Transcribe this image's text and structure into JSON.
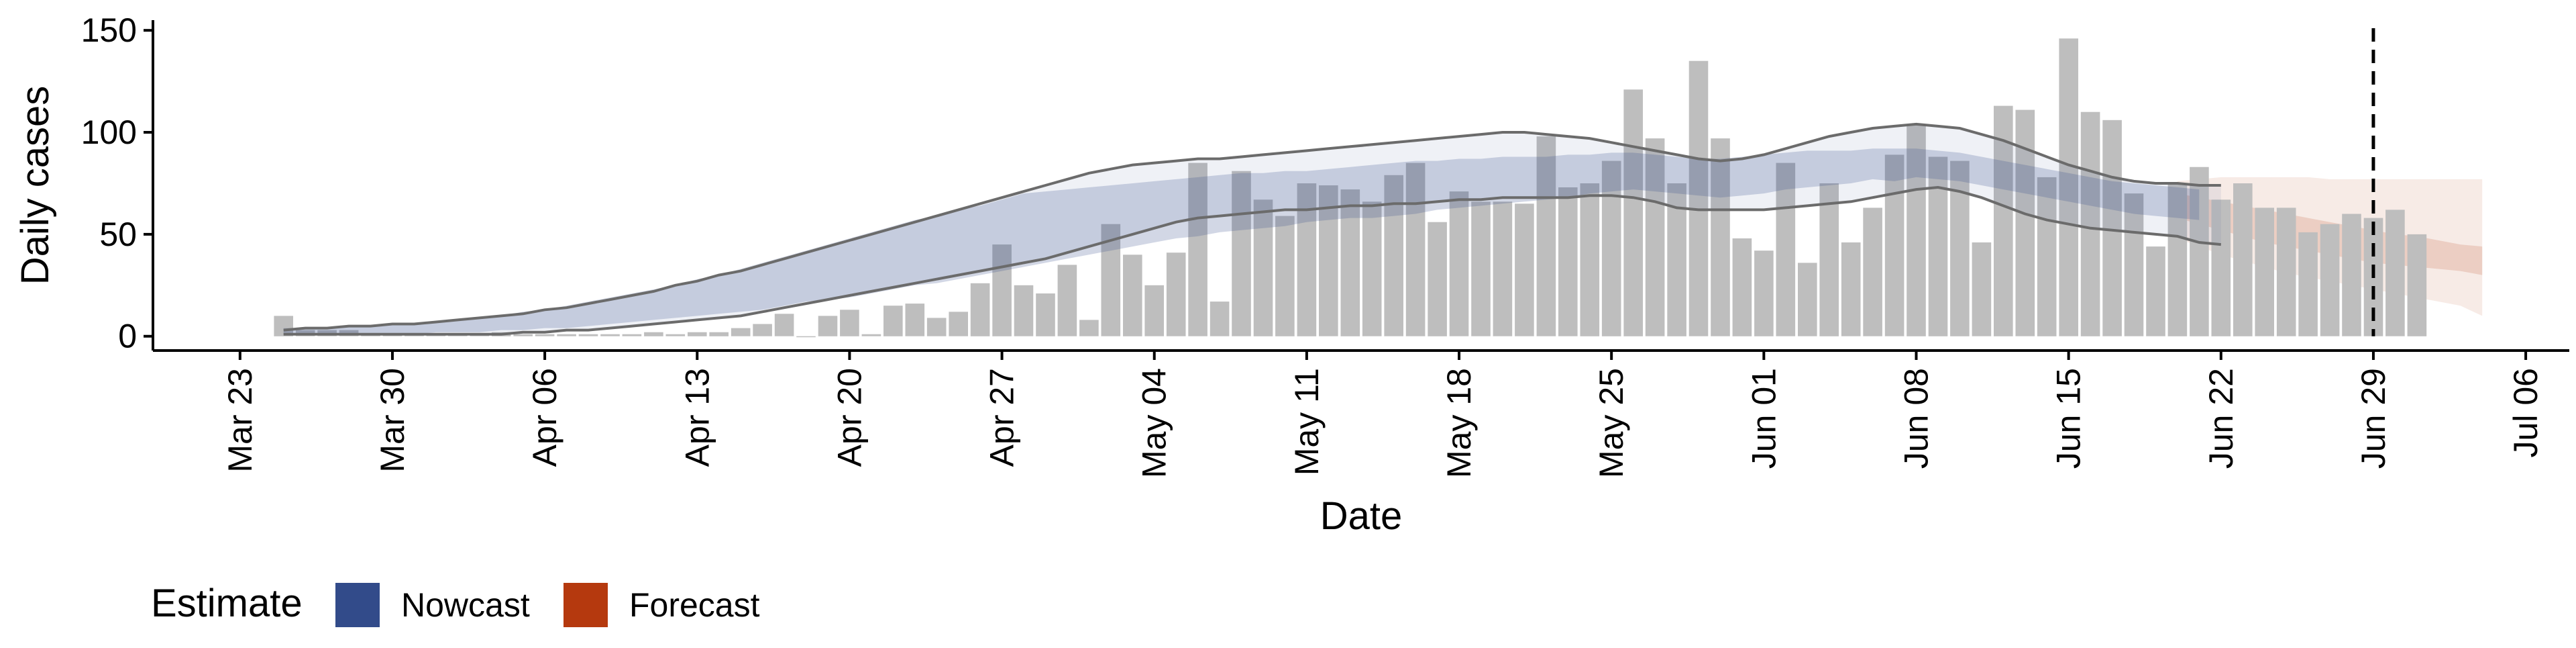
{
  "chart_data": {
    "type": "bar",
    "title": "",
    "xlabel": "Date",
    "ylabel": "Daily cases",
    "xlim": [
      "2020-03-19",
      "2020-07-08"
    ],
    "ylim": [
      -7,
      155
    ],
    "y_ticks": [
      0,
      50,
      100,
      150
    ],
    "x_ticks": [
      {
        "date": "2020-03-23",
        "label": "Mar 23"
      },
      {
        "date": "2020-03-30",
        "label": "Mar 30"
      },
      {
        "date": "2020-04-06",
        "label": "Apr 06"
      },
      {
        "date": "2020-04-13",
        "label": "Apr 13"
      },
      {
        "date": "2020-04-20",
        "label": "Apr 20"
      },
      {
        "date": "2020-04-27",
        "label": "Apr 27"
      },
      {
        "date": "2020-05-04",
        "label": "May 04"
      },
      {
        "date": "2020-05-11",
        "label": "May 11"
      },
      {
        "date": "2020-05-18",
        "label": "May 18"
      },
      {
        "date": "2020-05-25",
        "label": "May 25"
      },
      {
        "date": "2020-06-01",
        "label": "Jun 01"
      },
      {
        "date": "2020-06-08",
        "label": "Jun 08"
      },
      {
        "date": "2020-06-15",
        "label": "Jun 15"
      },
      {
        "date": "2020-06-22",
        "label": "Jun 22"
      },
      {
        "date": "2020-06-29",
        "label": "Jun 29"
      },
      {
        "date": "2020-07-06",
        "label": "Jul 06"
      }
    ],
    "grid": false,
    "legend": {
      "title": "Estimate",
      "placement": "bottom-left",
      "items": [
        {
          "label": "Nowcast",
          "color": "#324b8a"
        },
        {
          "label": "Forecast",
          "color": "#b5390e"
        }
      ]
    },
    "cutoff_date": "2020-06-29",
    "colors": {
      "bars": "#bebebe",
      "nowcast": "#324b8a",
      "forecast": "#b5390e",
      "bound_lines": "#6b6b6b",
      "cutoff_line": "#000000"
    },
    "bars": {
      "start_date": "2020-03-25",
      "values": [
        10,
        3,
        3,
        3,
        1,
        1,
        1,
        1,
        1,
        1,
        2,
        1,
        1,
        1,
        1,
        1,
        1,
        2,
        1,
        2,
        2,
        4,
        6,
        11,
        0,
        10,
        13,
        1,
        15,
        16,
        9,
        12,
        26,
        45,
        25,
        21,
        35,
        8,
        55,
        40,
        25,
        41,
        85,
        17,
        81,
        67,
        59,
        75,
        74,
        72,
        66,
        79,
        85,
        56,
        71,
        66,
        66,
        65,
        98,
        73,
        75,
        86,
        121,
        97,
        75,
        135,
        97,
        48,
        42,
        85,
        36,
        75,
        46,
        63,
        89,
        104,
        88,
        86,
        46,
        113,
        111,
        78,
        146,
        110,
        106,
        70,
        44,
        75,
        83,
        67,
        75,
        63,
        63,
        51,
        55,
        60,
        58,
        62,
        50
      ]
    },
    "series": [
      {
        "name": "Nowcast",
        "kind": "band",
        "start_date": "2020-03-25",
        "lower": [
          1,
          1,
          1,
          1,
          1,
          1,
          1,
          2,
          2,
          2,
          3,
          3,
          4,
          4,
          5,
          6,
          7,
          8,
          9,
          10,
          11,
          12,
          13,
          15,
          17,
          18,
          19,
          21,
          23,
          25,
          26,
          28,
          30,
          32,
          34,
          36,
          38,
          40,
          42,
          44,
          46,
          48,
          49,
          51,
          52,
          53,
          54,
          56,
          57,
          58,
          58,
          59,
          60,
          62,
          63,
          64,
          65,
          66,
          67,
          68,
          70,
          71,
          72,
          71,
          70,
          69,
          68,
          69,
          70,
          72,
          73,
          74,
          75,
          77,
          76,
          78,
          77,
          76,
          74,
          72,
          70,
          68,
          66,
          64,
          62,
          60,
          59,
          58,
          57
        ],
        "upper": [
          4,
          4,
          4,
          5,
          5,
          6,
          6,
          7,
          8,
          9,
          10,
          12,
          13,
          15,
          17,
          19,
          21,
          23,
          25,
          28,
          30,
          33,
          36,
          39,
          42,
          45,
          48,
          51,
          54,
          57,
          59,
          62,
          64,
          67,
          70,
          71,
          72,
          73,
          74,
          75,
          76,
          77,
          78,
          79,
          80,
          80,
          81,
          81,
          82,
          83,
          84,
          85,
          86,
          86,
          87,
          87,
          88,
          88,
          88,
          89,
          89,
          90,
          90,
          89,
          88,
          87,
          87,
          88,
          89,
          90,
          91,
          91,
          91,
          92,
          92,
          92,
          91,
          90,
          88,
          86,
          84,
          82,
          80,
          78,
          76,
          75,
          74,
          73,
          72
        ]
      },
      {
        "name": "",
        "kind": "bounds",
        "start_date": "2020-03-25",
        "lower": [
          1,
          1,
          1,
          1,
          1,
          1,
          1,
          1,
          1,
          1,
          1,
          2,
          2,
          3,
          3,
          4,
          5,
          6,
          7,
          8,
          9,
          10,
          12,
          14,
          16,
          18,
          20,
          22,
          24,
          26,
          28,
          30,
          32,
          34,
          36,
          38,
          41,
          44,
          47,
          50,
          53,
          56,
          58,
          59,
          60,
          61,
          62,
          62,
          63,
          64,
          64,
          65,
          65,
          66,
          67,
          67,
          68,
          68,
          68,
          68,
          69,
          69,
          68,
          66,
          63,
          62,
          62,
          62,
          62,
          63,
          64,
          65,
          66,
          68,
          70,
          72,
          73,
          71,
          68,
          64,
          60,
          57,
          55,
          53,
          52,
          51,
          50,
          49,
          46,
          45
        ],
        "upper": [
          3,
          4,
          4,
          5,
          5,
          6,
          6,
          7,
          8,
          9,
          10,
          11,
          13,
          14,
          16,
          18,
          20,
          22,
          25,
          27,
          30,
          32,
          35,
          38,
          41,
          44,
          47,
          50,
          53,
          56,
          59,
          62,
          65,
          68,
          71,
          74,
          77,
          80,
          82,
          84,
          85,
          86,
          87,
          87,
          88,
          89,
          90,
          91,
          92,
          93,
          94,
          95,
          96,
          97,
          98,
          99,
          100,
          100,
          99,
          98,
          97,
          95,
          93,
          91,
          89,
          87,
          86,
          87,
          89,
          92,
          95,
          98,
          100,
          102,
          103,
          104,
          103,
          102,
          99,
          96,
          92,
          88,
          84,
          81,
          78,
          76,
          75,
          75,
          74,
          74
        ]
      },
      {
        "name": "Forecast",
        "kind": "band",
        "start_date": "2020-06-20",
        "inner_lower": [
          58,
          55,
          52,
          49,
          46,
          44,
          42,
          40,
          38,
          36,
          35,
          34,
          33,
          32,
          30
        ],
        "inner_upper": [
          70,
          68,
          66,
          64,
          62,
          60,
          58,
          56,
          54,
          52,
          50,
          49,
          47,
          45,
          44
        ],
        "outer_lower": [
          48,
          44,
          40,
          37,
          34,
          31,
          29,
          27,
          25,
          23,
          21,
          19,
          17,
          15,
          10
        ],
        "outer_upper": [
          76,
          77,
          78,
          78,
          78,
          78,
          78,
          77,
          77,
          77,
          77,
          77,
          77,
          77,
          77
        ]
      }
    ]
  }
}
